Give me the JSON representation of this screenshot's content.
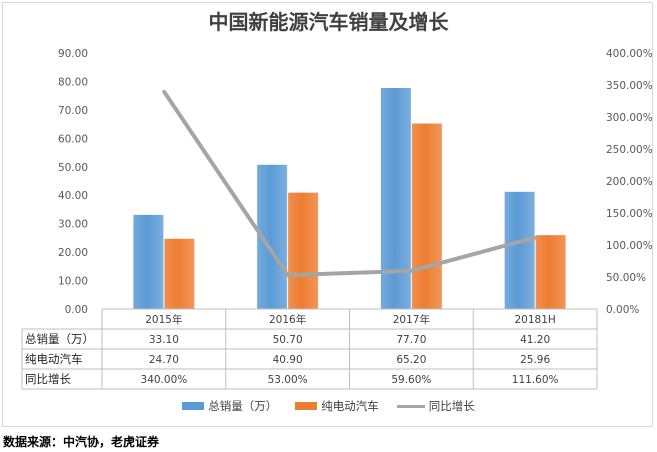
{
  "chart_data": {
    "type": "bar",
    "title": "中国新能源汽车销量及增长",
    "categories": [
      "2015年",
      "2016年",
      "2017年",
      "20181H"
    ],
    "series": [
      {
        "name": "总销量（万）",
        "kind": "bar",
        "color": "#5b9bd5",
        "values": [
          33.1,
          50.7,
          77.7,
          41.2
        ],
        "labels": [
          "33.10",
          "50.70",
          "77.70",
          "41.20"
        ]
      },
      {
        "name": "纯电动汽车",
        "kind": "bar",
        "color": "#ed7d31",
        "values": [
          24.7,
          40.9,
          65.2,
          25.96
        ],
        "labels": [
          "24.70",
          "40.90",
          "65.20",
          "25.96"
        ]
      },
      {
        "name": "同比增长",
        "kind": "line",
        "axis": "right",
        "color": "#a5a5a5",
        "values": [
          340.0,
          53.0,
          59.6,
          111.6
        ],
        "labels": [
          "340.00%",
          "53.00%",
          "59.60%",
          "111.60%"
        ]
      }
    ],
    "y_left": {
      "min": 0,
      "max": 90,
      "step": 10,
      "ticks": [
        "0.00",
        "10.00",
        "20.00",
        "30.00",
        "40.00",
        "50.00",
        "60.00",
        "70.00",
        "80.00",
        "90.00"
      ]
    },
    "y_right": {
      "min": 0,
      "max": 400,
      "step": 50,
      "ticks": [
        "0.00%",
        "50.00%",
        "100.00%",
        "150.00%",
        "200.00%",
        "250.00%",
        "300.00%",
        "350.00%",
        "400.00%"
      ]
    },
    "grid": false,
    "legend_position": "bottom",
    "data_table": true
  },
  "source": "数据来源：中汽协，老虎证券"
}
